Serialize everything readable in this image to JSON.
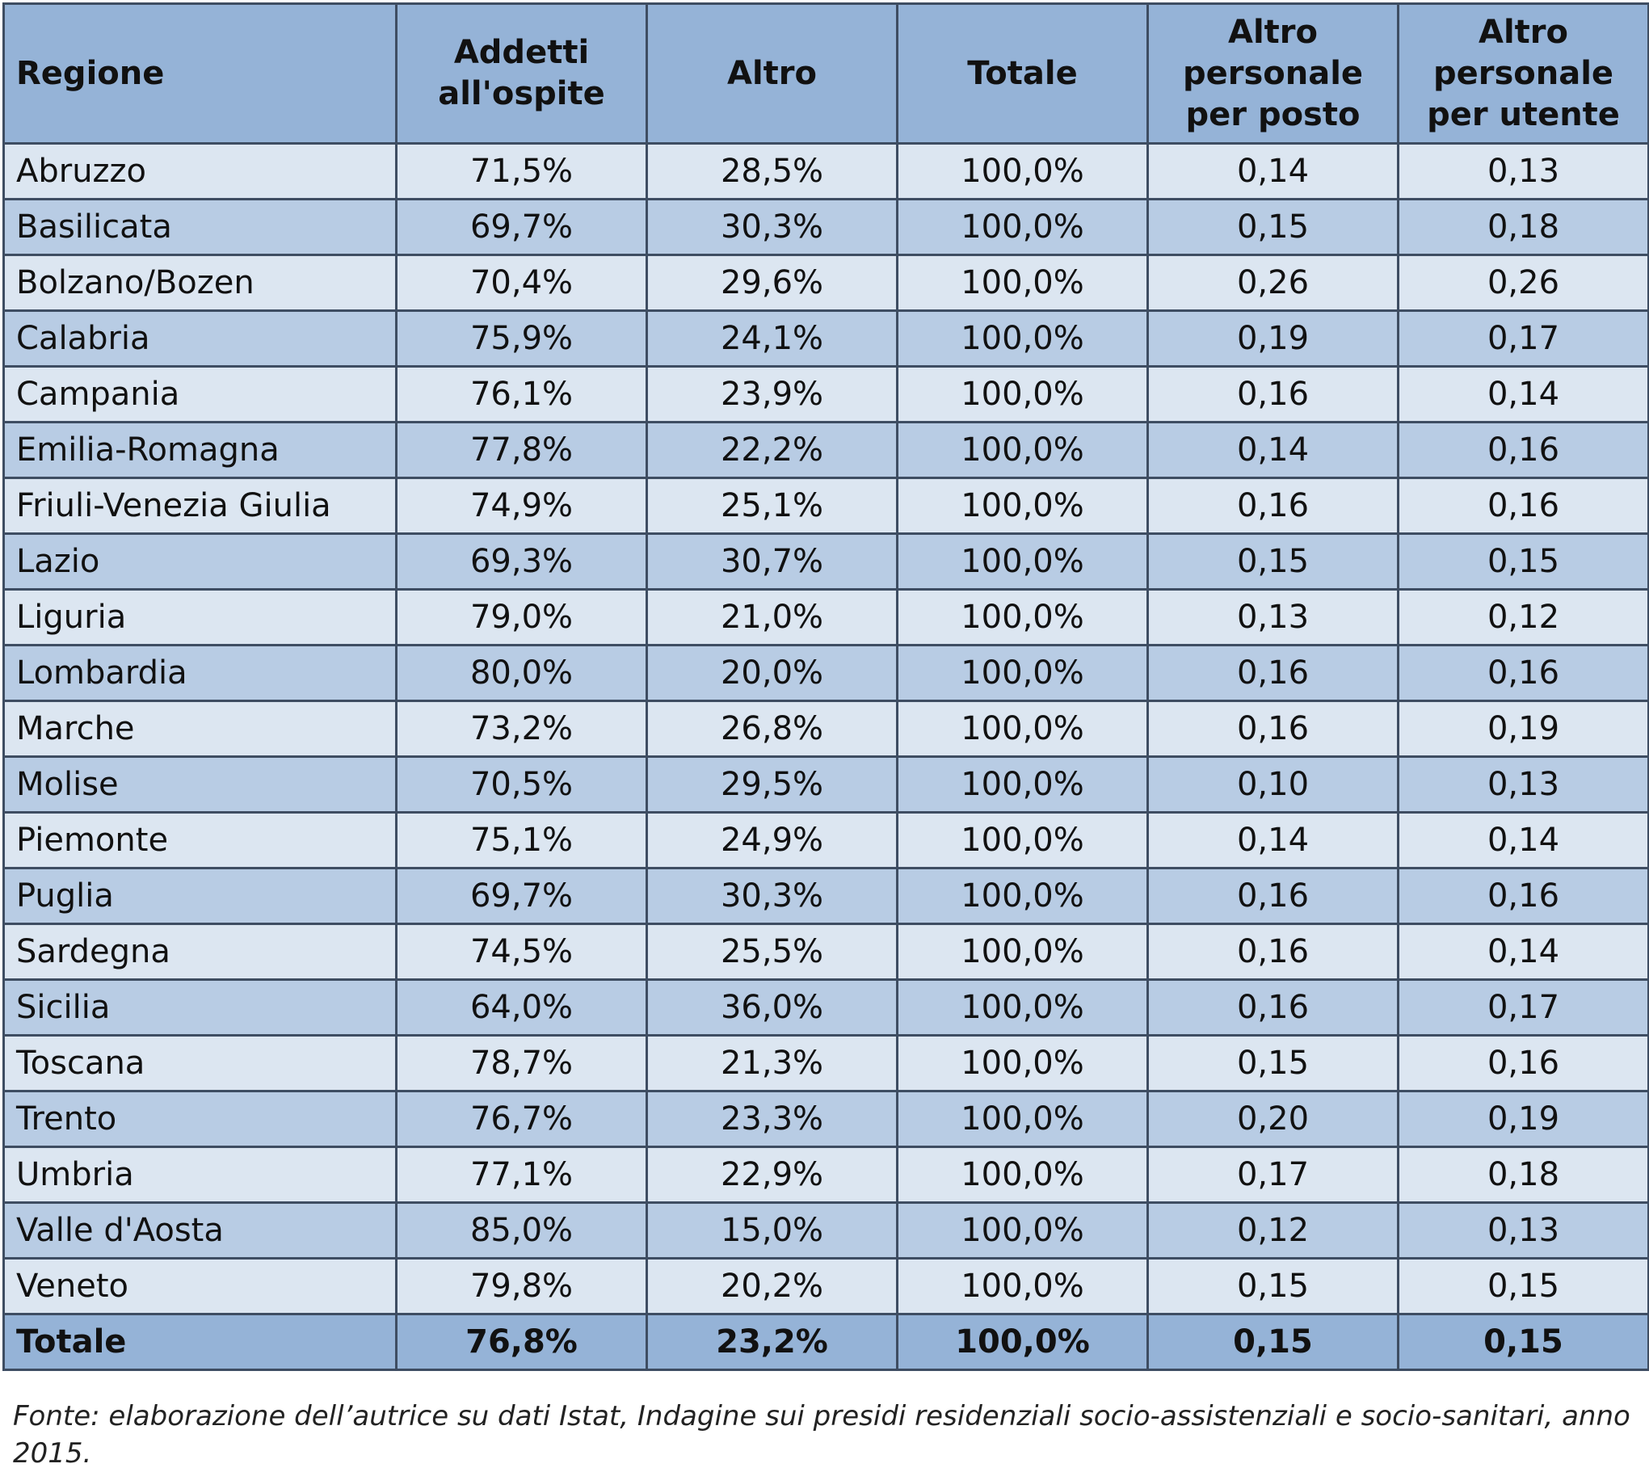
{
  "table": {
    "headers": [
      "Regione",
      "Addetti\nall'ospite",
      "Altro",
      "Totale",
      "Altro\npersonale\nper posto",
      "Altro\npersonale\nper utente"
    ],
    "rows": [
      [
        "Abruzzo",
        "71,5%",
        "28,5%",
        "100,0%",
        "0,14",
        "0,13"
      ],
      [
        "Basilicata",
        "69,7%",
        "30,3%",
        "100,0%",
        "0,15",
        "0,18"
      ],
      [
        "Bolzano/Bozen",
        "70,4%",
        "29,6%",
        "100,0%",
        "0,26",
        "0,26"
      ],
      [
        "Calabria",
        "75,9%",
        "24,1%",
        "100,0%",
        "0,19",
        "0,17"
      ],
      [
        "Campania",
        "76,1%",
        "23,9%",
        "100,0%",
        "0,16",
        "0,14"
      ],
      [
        "Emilia-Romagna",
        "77,8%",
        "22,2%",
        "100,0%",
        "0,14",
        "0,16"
      ],
      [
        "Friuli-Venezia Giulia",
        "74,9%",
        "25,1%",
        "100,0%",
        "0,16",
        "0,16"
      ],
      [
        "Lazio",
        "69,3%",
        "30,7%",
        "100,0%",
        "0,15",
        "0,15"
      ],
      [
        "Liguria",
        "79,0%",
        "21,0%",
        "100,0%",
        "0,13",
        "0,12"
      ],
      [
        "Lombardia",
        "80,0%",
        "20,0%",
        "100,0%",
        "0,16",
        "0,16"
      ],
      [
        "Marche",
        "73,2%",
        "26,8%",
        "100,0%",
        "0,16",
        "0,19"
      ],
      [
        "Molise",
        "70,5%",
        "29,5%",
        "100,0%",
        "0,10",
        "0,13"
      ],
      [
        "Piemonte",
        "75,1%",
        "24,9%",
        "100,0%",
        "0,14",
        "0,14"
      ],
      [
        "Puglia",
        "69,7%",
        "30,3%",
        "100,0%",
        "0,16",
        "0,16"
      ],
      [
        "Sardegna",
        "74,5%",
        "25,5%",
        "100,0%",
        "0,16",
        "0,14"
      ],
      [
        "Sicilia",
        "64,0%",
        "36,0%",
        "100,0%",
        "0,16",
        "0,17"
      ],
      [
        "Toscana",
        "78,7%",
        "21,3%",
        "100,0%",
        "0,15",
        "0,16"
      ],
      [
        "Trento",
        "76,7%",
        "23,3%",
        "100,0%",
        "0,20",
        "0,19"
      ],
      [
        "Umbria",
        "77,1%",
        "22,9%",
        "100,0%",
        "0,17",
        "0,18"
      ],
      [
        "Valle d'Aosta",
        "85,0%",
        "15,0%",
        "100,0%",
        "0,12",
        "0,13"
      ],
      [
        "Veneto",
        "79,8%",
        "20,2%",
        "100,0%",
        "0,15",
        "0,15"
      ]
    ],
    "total_row": [
      "Totale",
      "76,8%",
      "23,2%",
      "100,0%",
      "0,15",
      "0,15"
    ]
  },
  "source_note": "Fonte: elaborazione dell’autrice su dati Istat, Indagine sui presidi residenziali socio-assistenziali e socio-sanitari, anno 2015.",
  "colors": {
    "header_bg": "#95b3d7",
    "row_light": "#dce6f1",
    "row_dark": "#b8cce4",
    "border": "#3e4d62"
  }
}
